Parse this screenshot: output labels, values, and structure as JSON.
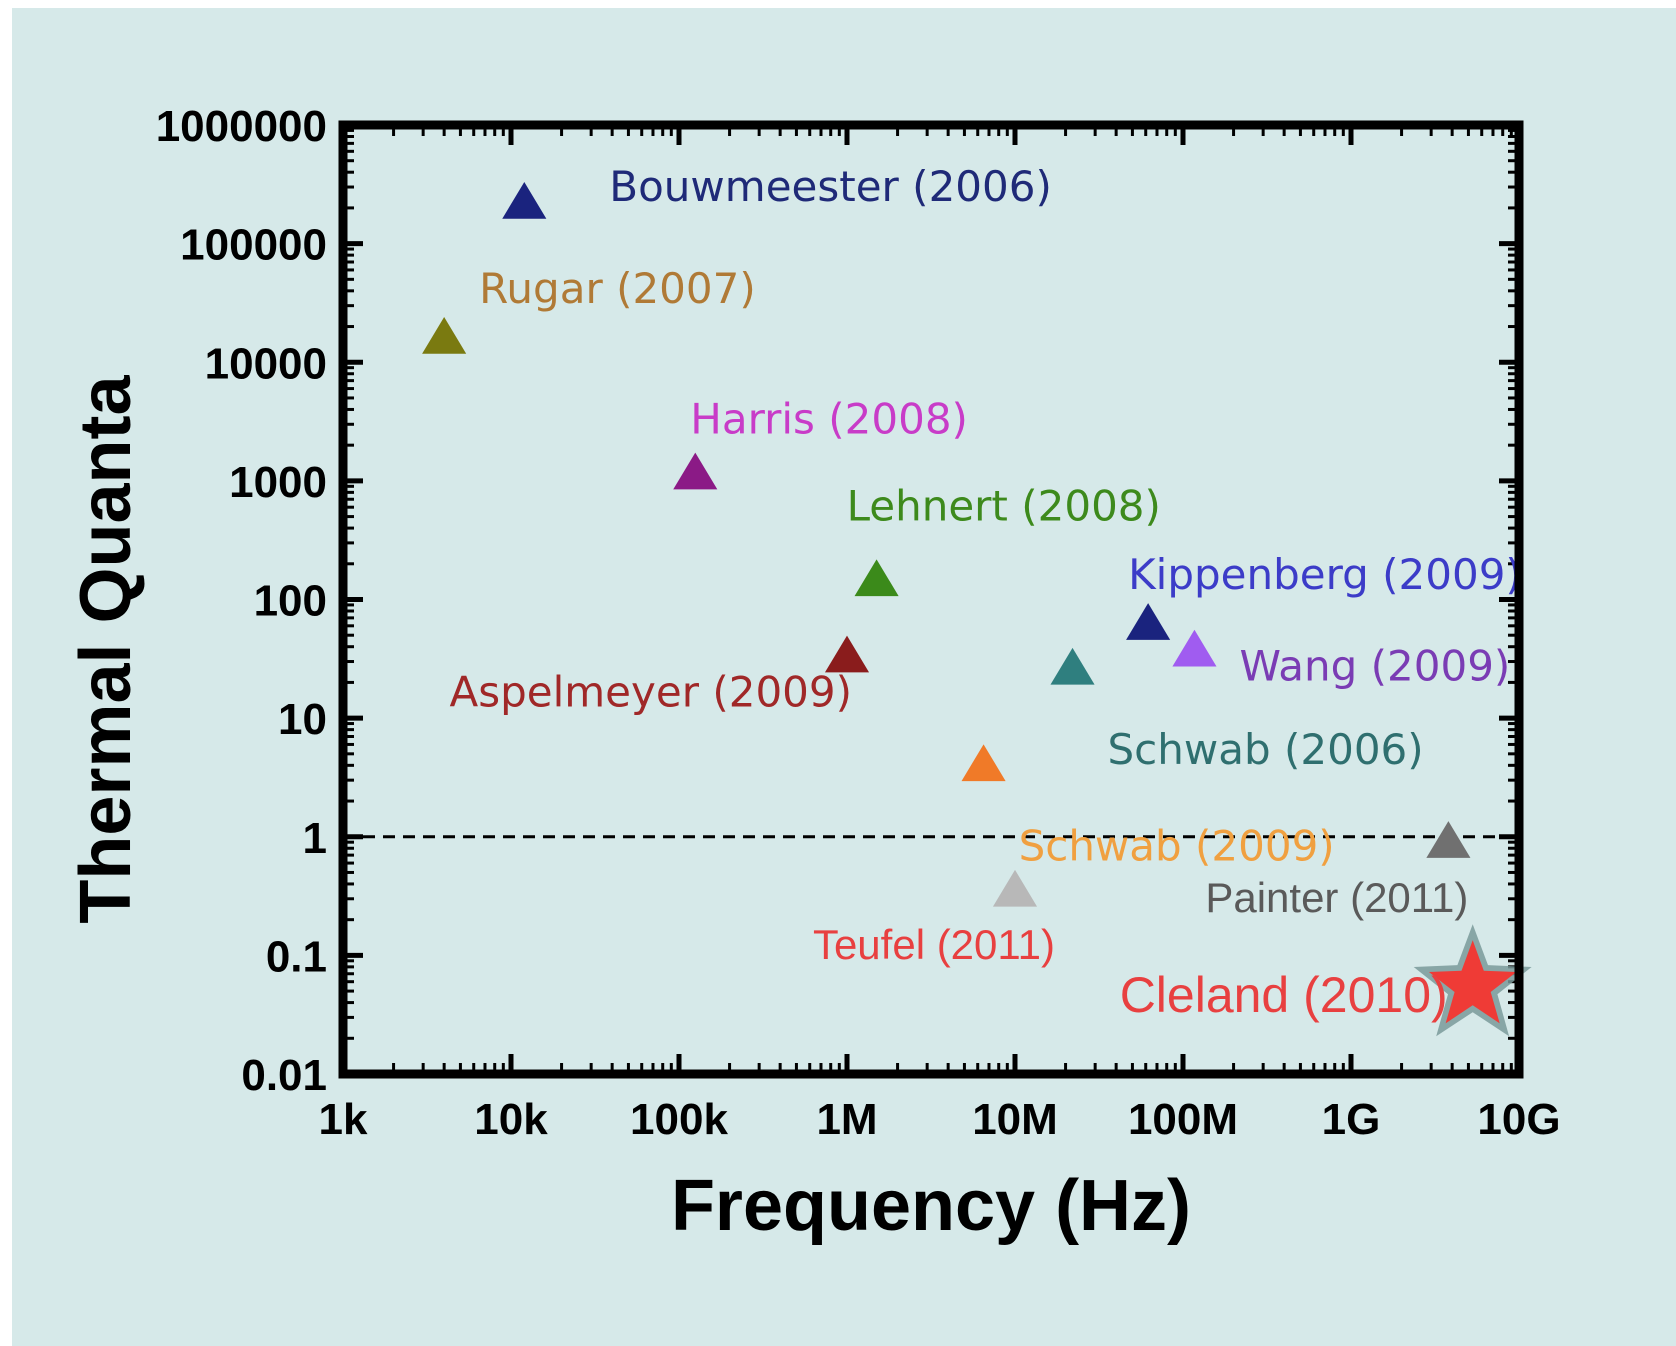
{
  "chart_data": {
    "type": "scatter",
    "xlabel": "Frequency (Hz)",
    "ylabel": "Thermal Quanta",
    "xscale": "log",
    "yscale": "log",
    "xlim": [
      1000,
      10000000000
    ],
    "ylim": [
      0.01,
      1000000
    ],
    "x_ticks": [
      {
        "value": 1000,
        "label": "1k"
      },
      {
        "value": 10000,
        "label": "10k"
      },
      {
        "value": 100000,
        "label": "100k"
      },
      {
        "value": 1000000,
        "label": "1M"
      },
      {
        "value": 10000000,
        "label": "10M"
      },
      {
        "value": 100000000,
        "label": "100M"
      },
      {
        "value": 1000000000,
        "label": "1G"
      },
      {
        "value": 10000000000,
        "label": "10G"
      }
    ],
    "y_ticks": [
      {
        "value": 0.01,
        "label": "0.01"
      },
      {
        "value": 0.1,
        "label": "0.1"
      },
      {
        "value": 1,
        "label": "1"
      },
      {
        "value": 10,
        "label": "10"
      },
      {
        "value": 100,
        "label": "100"
      },
      {
        "value": 1000,
        "label": "1000"
      },
      {
        "value": 10000,
        "label": "10000"
      },
      {
        "value": 100000,
        "label": "100000"
      },
      {
        "value": 1000000,
        "label": "1000000"
      }
    ],
    "reference_line": {
      "y": 1,
      "style": "dashed"
    },
    "grid": false,
    "legend": "none",
    "points": [
      {
        "label": "Bouwmeester (2006)",
        "x": 12000,
        "y": 220000,
        "marker": "triangle",
        "color": "#1a237e",
        "label_color": "#1f2a78",
        "label_font": "ds",
        "label_anchor": "right"
      },
      {
        "label": "Rugar (2007)",
        "x": 4000,
        "y": 16000,
        "marker": "triangle",
        "color": "#7a7a10",
        "label_color": "#b07a36",
        "label_font": "ds",
        "label_anchor": "upper-right"
      },
      {
        "label": "Harris (2008)",
        "x": 125000,
        "y": 1150,
        "marker": "triangle",
        "color": "#8b1a86",
        "label_color": "#c83cc8",
        "label_font": "ds",
        "label_anchor": "above"
      },
      {
        "label": "Lehnert (2008)",
        "x": 1500000,
        "y": 145,
        "marker": "triangle",
        "color": "#3b8a1a",
        "label_color": "#3d8a1c",
        "label_font": "ds",
        "label_anchor": "above"
      },
      {
        "label": "Aspelmeyer (2009)",
        "x": 1000000,
        "y": 33,
        "marker": "triangle",
        "color": "#8a1c1c",
        "label_color": "#a02828",
        "label_font": "ds",
        "label_anchor": "lower-left"
      },
      {
        "label": "Kippenberg (2009)",
        "x": 62000000,
        "y": 62,
        "marker": "triangle",
        "color": "#1a237e",
        "label_color": "#3c3cc8",
        "label_font": "ds",
        "label_anchor": "above"
      },
      {
        "label": "Wang (2009)",
        "x": 117000000,
        "y": 37,
        "marker": "triangle",
        "color": "#a05cf0",
        "label_color": "#7a3cb4",
        "label_font": "ds",
        "label_anchor": "right"
      },
      {
        "label": "Schwab (2006)",
        "x": 22000000,
        "y": 26,
        "marker": "triangle",
        "color": "#2f7f7f",
        "label_color": "#2f6f6f",
        "label_font": "ds",
        "label_anchor": "lower-right"
      },
      {
        "label": "Schwab (2009)",
        "x": 6500000,
        "y": 4,
        "marker": "triangle",
        "color": "#f07a28",
        "label_color": "#f0a040",
        "label_font": "ds",
        "label_anchor": "lower-right"
      },
      {
        "label": "Painter (2011)",
        "x": 3800000000,
        "y": 0.9,
        "marker": "triangle",
        "color": "#707070",
        "label_color": "#5a5a5a",
        "label_font": "ls",
        "label_anchor": "below-left"
      },
      {
        "label": "Teufel (2011)",
        "x": 10000000,
        "y": 0.35,
        "marker": "triangle",
        "color": "#b8b8b8",
        "label_color": "#e84040",
        "label_font": "ls",
        "label_anchor": "below"
      },
      {
        "label": "Cleland (2010)",
        "x": 5300000000,
        "y": 0.055,
        "marker": "star",
        "color": "#ef3b36",
        "label_color": "#e84040",
        "label_font": "big",
        "label_anchor": "left"
      }
    ]
  }
}
